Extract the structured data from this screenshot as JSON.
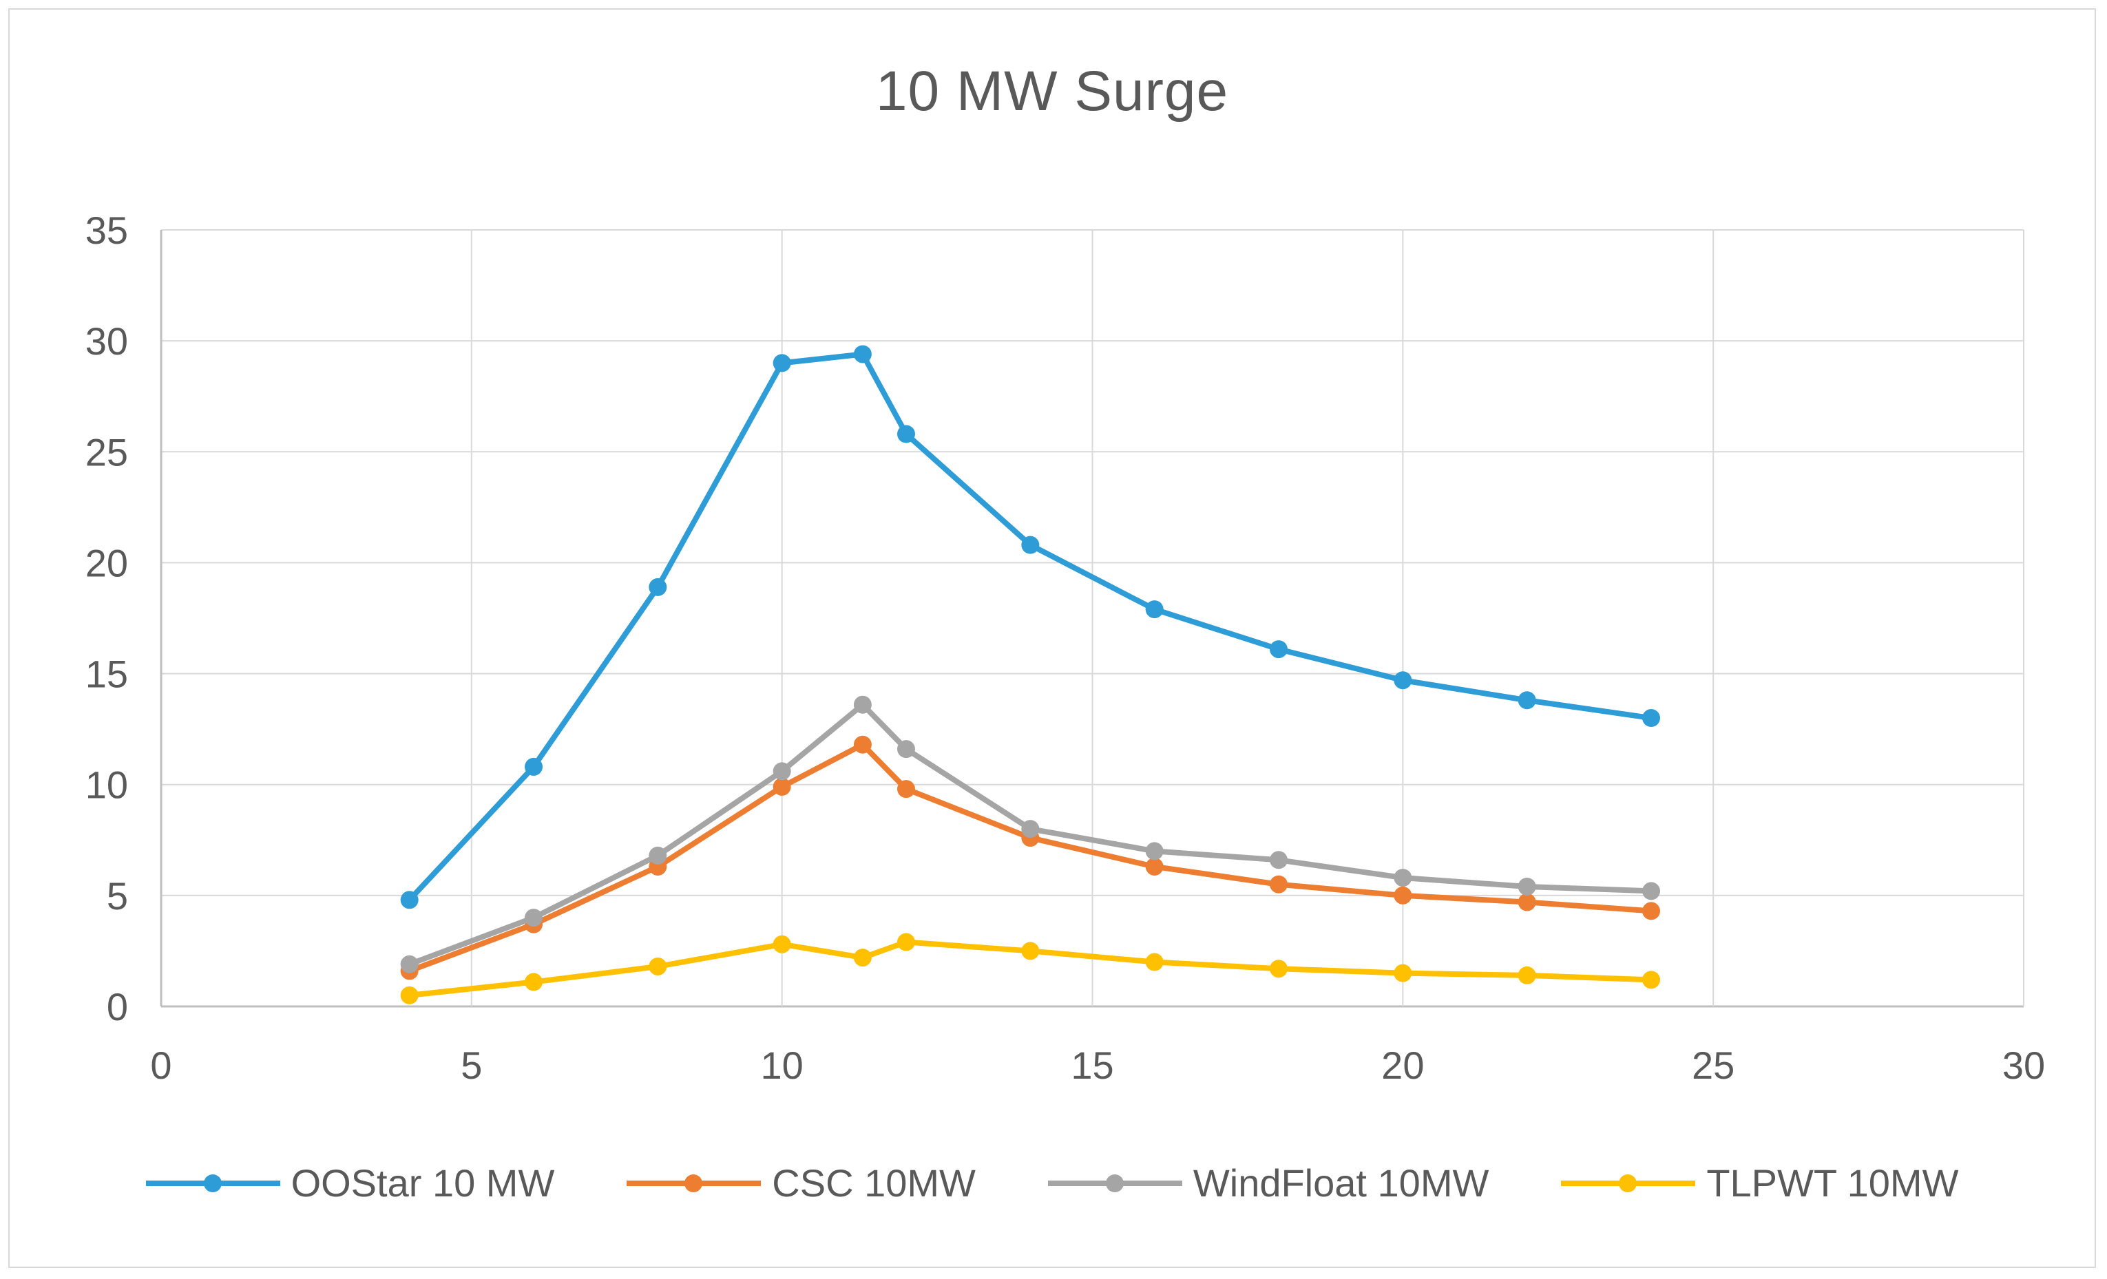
{
  "chart_data": {
    "type": "line",
    "title": "10 MW Surge",
    "xlabel": "",
    "ylabel": "",
    "xlim": [
      0,
      30
    ],
    "ylim": [
      0,
      35
    ],
    "x_ticks": [
      0,
      5,
      10,
      15,
      20,
      25,
      30
    ],
    "y_ticks": [
      0,
      5,
      10,
      15,
      20,
      25,
      30,
      35
    ],
    "grid": true,
    "legend_position": "bottom",
    "colors": {
      "grid": "#d9d9d9",
      "axis": "#bfbfbf",
      "text": "#595959"
    },
    "x": [
      4,
      6,
      8,
      10,
      11.3,
      12,
      14,
      16,
      18,
      20,
      22,
      24
    ],
    "series": [
      {
        "name": "OOStar 10 MW",
        "color": "#2e9cd6",
        "values": [
          4.8,
          10.8,
          18.9,
          29.0,
          29.4,
          25.8,
          20.8,
          17.9,
          16.1,
          14.7,
          13.8,
          13.0
        ]
      },
      {
        "name": "CSC 10MW",
        "color": "#ed7d31",
        "values": [
          1.6,
          3.7,
          6.3,
          9.9,
          11.8,
          9.8,
          7.6,
          6.3,
          5.5,
          5.0,
          4.7,
          4.3
        ]
      },
      {
        "name": "WindFloat 10MW",
        "color": "#a5a5a5",
        "values": [
          1.9,
          4.0,
          6.8,
          10.6,
          13.6,
          11.6,
          8.0,
          7.0,
          6.6,
          5.8,
          5.4,
          5.2
        ]
      },
      {
        "name": "TLPWT 10MW",
        "color": "#ffc000",
        "values": [
          0.5,
          1.1,
          1.8,
          2.8,
          2.2,
          2.9,
          2.5,
          2.0,
          1.7,
          1.5,
          1.4,
          1.2
        ]
      }
    ]
  }
}
